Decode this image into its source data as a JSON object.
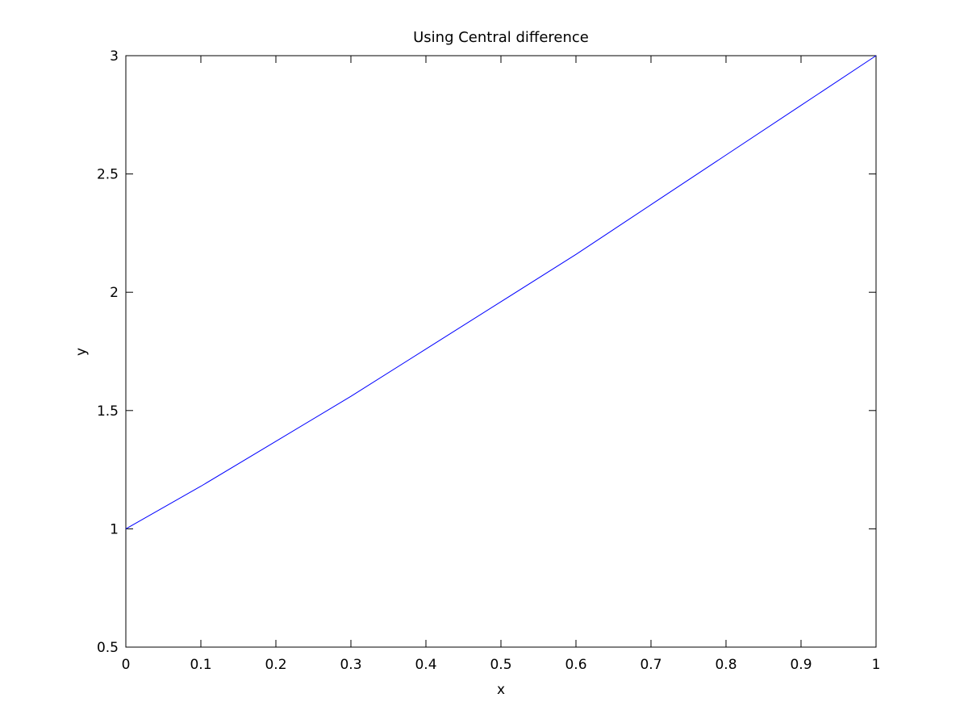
{
  "chart_data": {
    "type": "line",
    "title": "Using Central difference",
    "xlabel": "x",
    "ylabel": "y",
    "xlim": [
      0,
      1
    ],
    "ylim": [
      0.5,
      3
    ],
    "xticks": [
      "0",
      "0.1",
      "0.2",
      "0.3",
      "0.4",
      "0.5",
      "0.6",
      "0.7",
      "0.8",
      "0.9",
      "1"
    ],
    "yticks": [
      "0.5",
      "1",
      "1.5",
      "2",
      "2.5",
      "3"
    ],
    "grid": false,
    "series": [
      {
        "color": "#0000ff",
        "x": [
          0,
          0.1,
          0.2,
          0.3,
          0.4,
          0.5,
          0.6,
          0.7,
          0.8,
          0.9,
          1
        ],
        "y": [
          1,
          1.18,
          1.37,
          1.56,
          1.76,
          1.96,
          2.16,
          2.37,
          2.58,
          2.79,
          3
        ]
      }
    ]
  }
}
